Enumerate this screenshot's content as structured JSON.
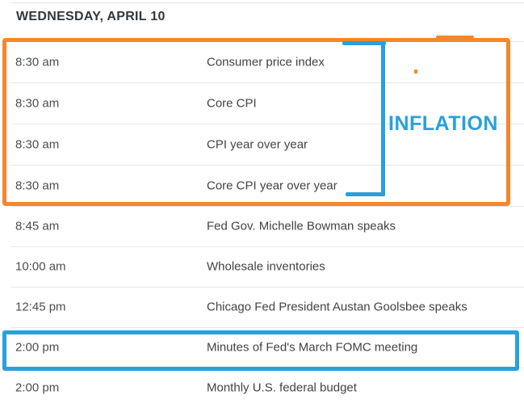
{
  "page": {
    "date_header": "WEDNESDAY, APRIL 10"
  },
  "schedule": {
    "rows": [
      {
        "time": "8:30 am",
        "event": "Consumer price index"
      },
      {
        "time": "8:30 am",
        "event": "Core CPI"
      },
      {
        "time": "8:30 am",
        "event": "CPI year over year"
      },
      {
        "time": "8:30 am",
        "event": "Core CPI year over year"
      },
      {
        "time": "8:45 am",
        "event": "Fed Gov. Michelle Bowman speaks"
      },
      {
        "time": "10:00 am",
        "event": "Wholesale inventories"
      },
      {
        "time": "12:45 pm",
        "event": "Chicago Fed President Austan Goolsbee speaks"
      },
      {
        "time": "2:00 pm",
        "event": "Minutes of Fed's March FOMC meeting"
      },
      {
        "time": "2:00 pm",
        "event": "Monthly U.S. federal budget"
      }
    ]
  },
  "annotations": {
    "inflation_label": "INFLATION",
    "highlight_orange": "#F6862B",
    "highlight_blue": "#29A0DC"
  }
}
